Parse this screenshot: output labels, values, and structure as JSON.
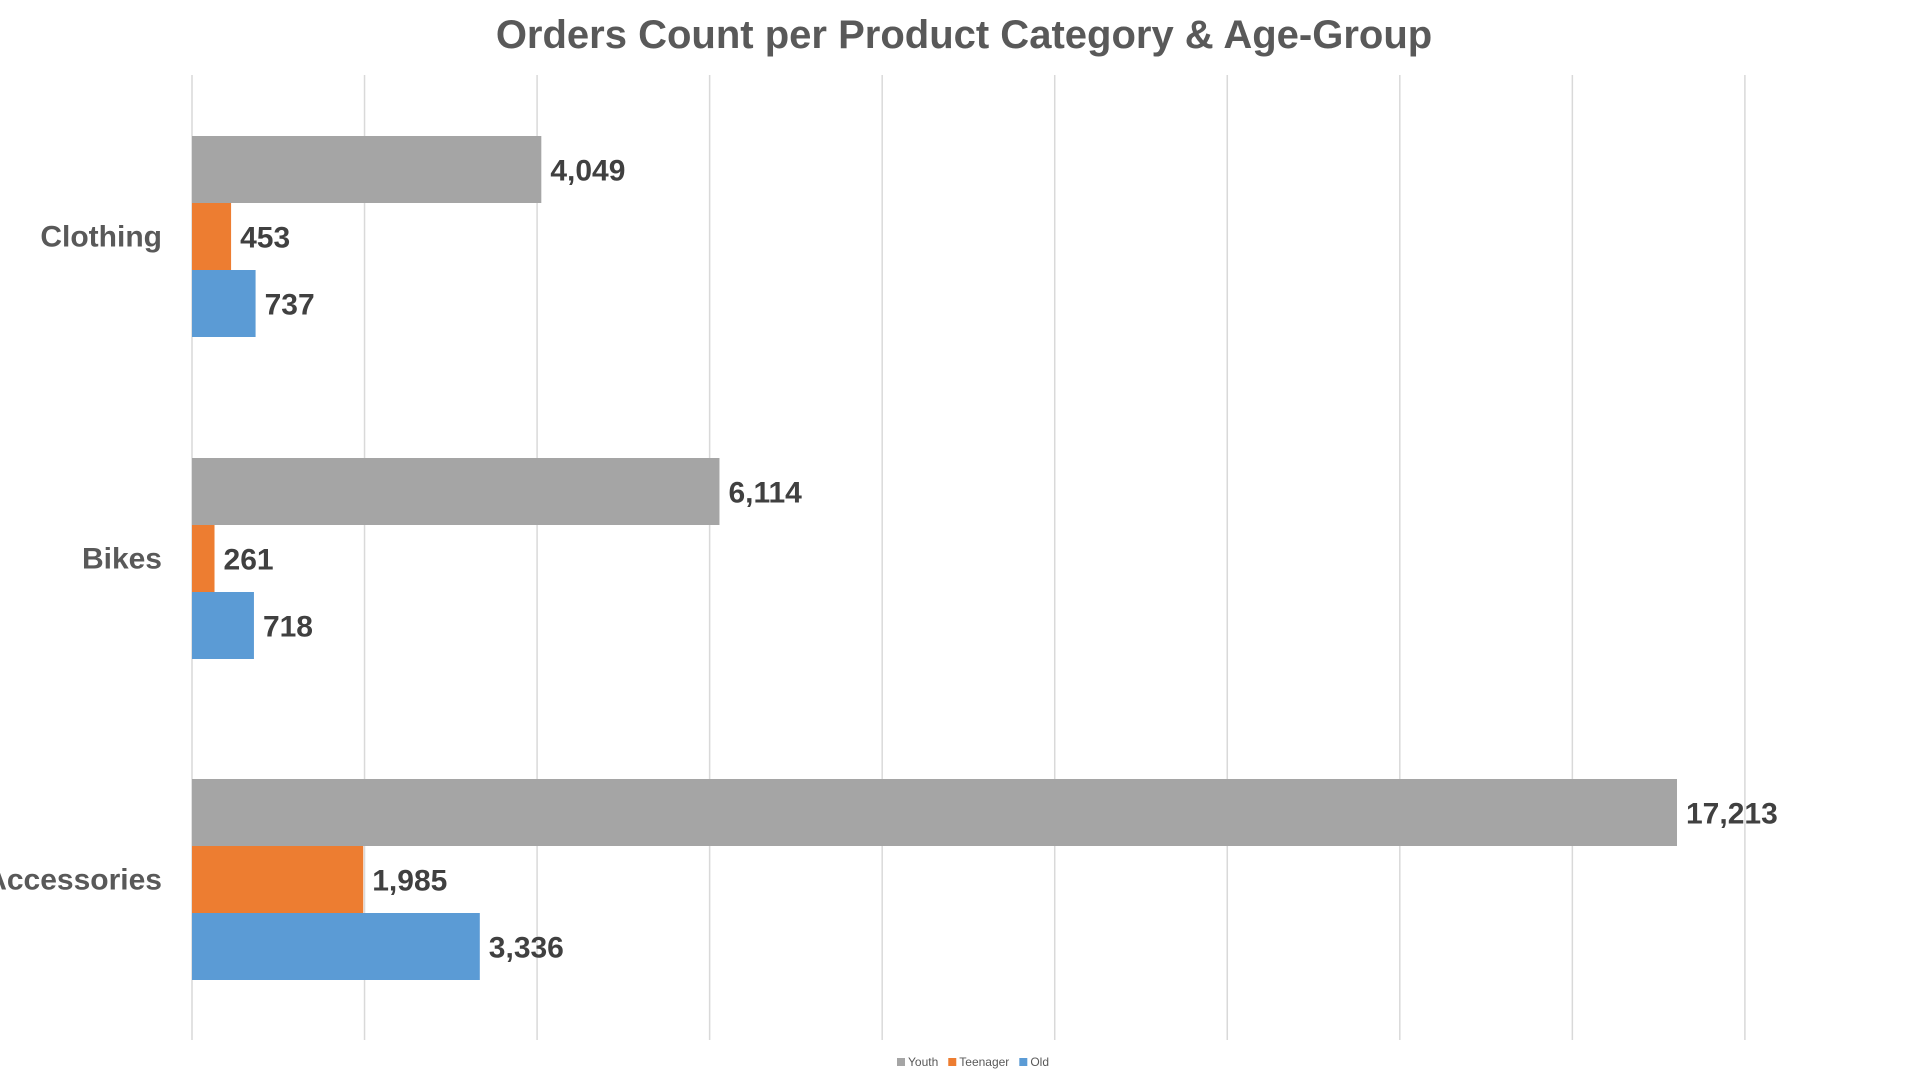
{
  "chart_data": {
    "type": "bar",
    "orientation": "horizontal",
    "title": "Orders Count per Product Category & Age-Group",
    "categories": [
      "Clothing",
      "Bikes",
      "Accessories"
    ],
    "series": [
      {
        "name": "Youth",
        "color": "#a5a5a5",
        "values": [
          4049,
          6114,
          17213
        ]
      },
      {
        "name": "Teenager",
        "color": "#ed7d31",
        "values": [
          453,
          261,
          1985
        ]
      },
      {
        "name": "Old",
        "color": "#5b9bd5",
        "values": [
          737,
          718,
          3336
        ]
      }
    ],
    "data_labels": [
      [
        "4,049",
        "6,114",
        "17,213"
      ],
      [
        "453",
        "261",
        "1,985"
      ],
      [
        "737",
        "718",
        "3,336"
      ]
    ],
    "xlim": [
      0,
      20000
    ],
    "grid": true,
    "legend_position": "bottom"
  }
}
